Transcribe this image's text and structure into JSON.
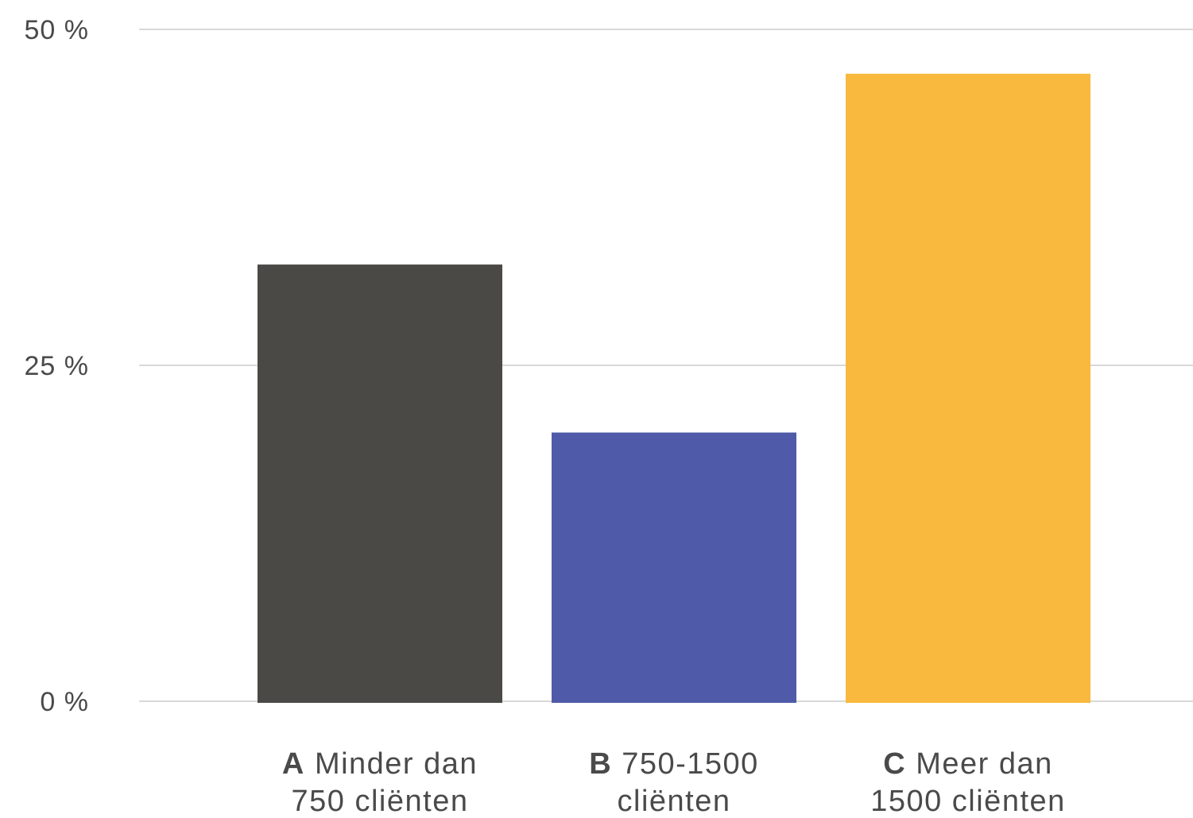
{
  "chart_data": {
    "type": "bar",
    "categories": [
      {
        "letter": "A",
        "line1": "Minder dan",
        "line2": "750 cliënten"
      },
      {
        "letter": "B",
        "line1": "750-1500",
        "line2": "cliënten"
      },
      {
        "letter": "C",
        "line1": "Meer dan",
        "line2": "1500 cliënten"
      }
    ],
    "values": [
      32.5,
      20,
      46.7
    ],
    "colors": [
      "#4a4945",
      "#4f5ba8",
      "#f9b93e"
    ],
    "y_ticks": [
      {
        "value": 0,
        "label": "0 %"
      },
      {
        "value": 25,
        "label": "25 %"
      },
      {
        "value": 50,
        "label": "50 %"
      }
    ],
    "ylim": [
      0,
      50
    ],
    "grid": true
  }
}
